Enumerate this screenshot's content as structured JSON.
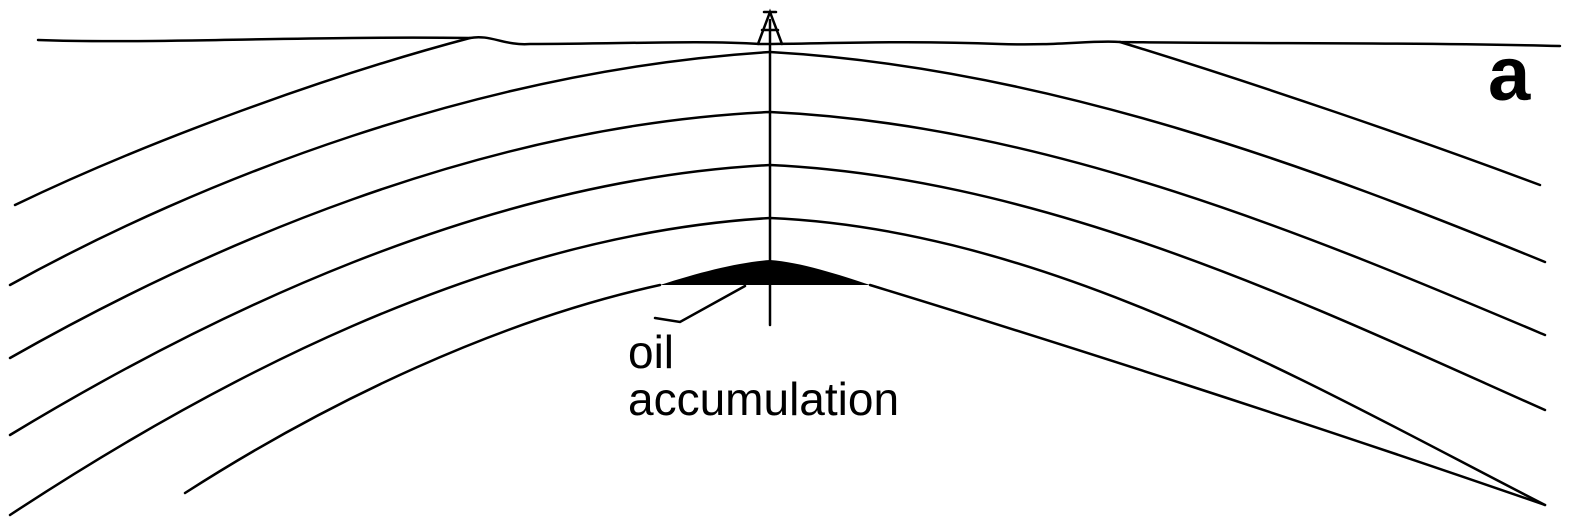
{
  "panel_label": "a",
  "label": {
    "lines": [
      "oil",
      "accumulation"
    ]
  }
}
